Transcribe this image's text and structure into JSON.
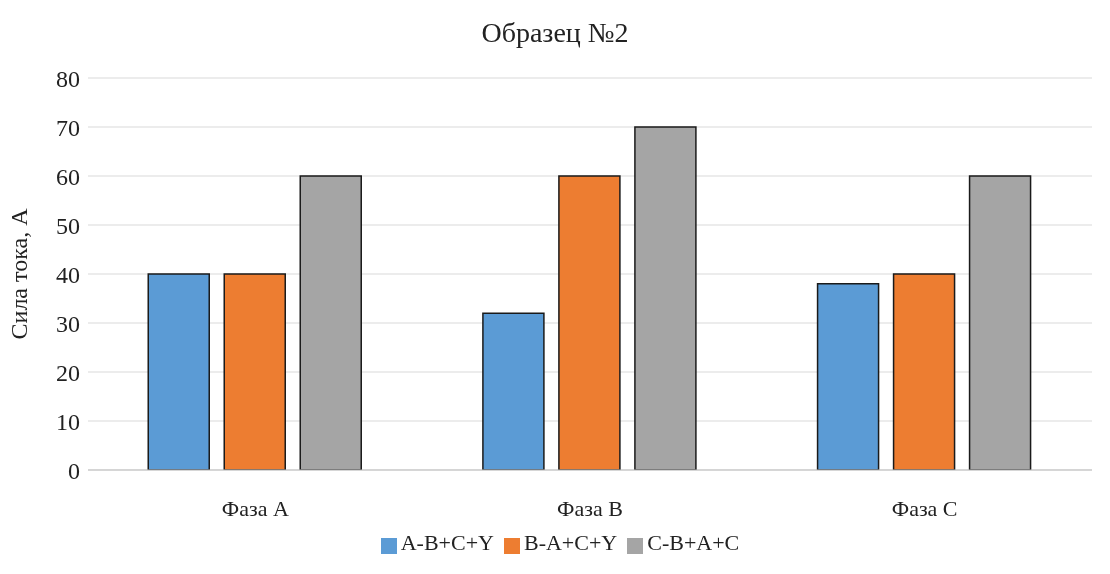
{
  "chart_data": {
    "type": "bar",
    "title": "Образец №2",
    "ylabel": "Сила тока, А",
    "categories": [
      "Фаза  A",
      "Фаза  B",
      "Фаза  C"
    ],
    "series": [
      {
        "name": "A-B+C+Y",
        "color": "#5b9bd5",
        "values": [
          40,
          32,
          38
        ]
      },
      {
        "name": "B-A+C+Y",
        "color": "#ed7d31",
        "values": [
          40,
          60,
          40
        ]
      },
      {
        "name": "C-B+A+C",
        "color": "#a5a5a5",
        "values": [
          60,
          70,
          60
        ]
      }
    ],
    "ylim": [
      0,
      80
    ],
    "yticks": [
      0,
      10,
      20,
      30,
      40,
      50,
      60,
      70,
      80
    ],
    "grid": "y",
    "legend": "bottom"
  }
}
